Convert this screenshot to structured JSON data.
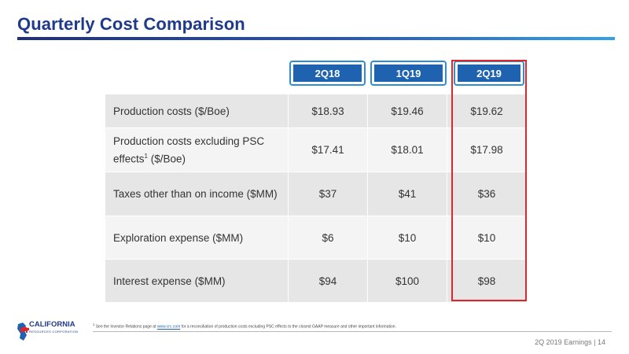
{
  "page": {
    "title": "Quarterly Cost Comparison",
    "page_info": "2Q 2019 Earnings | 14"
  },
  "table": {
    "columns": [
      "2Q18",
      "1Q19",
      "2Q19"
    ],
    "rows": [
      {
        "label": "Production costs ($/Boe)",
        "values": [
          "$18.93",
          "$19.46",
          "$19.62"
        ]
      },
      {
        "label_pre": "Production costs excluding PSC effects",
        "label_sup": "1",
        "label_post": " ($/Boe)",
        "values": [
          "$17.41",
          "$18.01",
          "$17.98"
        ]
      },
      {
        "label": "Taxes other than on income ($MM)",
        "values": [
          "$37",
          "$41",
          "$36"
        ]
      },
      {
        "label": "Exploration expense ($MM)",
        "values": [
          "$6",
          "$10",
          "$10"
        ]
      },
      {
        "label": "Interest expense ($MM)",
        "values": [
          "$94",
          "$100",
          "$98"
        ]
      }
    ],
    "highlighted_column": "2Q19"
  },
  "footnote": {
    "marker": "1",
    "pre": " See the Investor Relations page at ",
    "link": "www.crc.com",
    "post": " for a reconciliation of production costs excluding PSC effects to the closest GAAP measure and other important information."
  },
  "logo": {
    "name": "CALIFORNIA",
    "subtitle": "RESOURCES CORPORATION",
    "icon": "california-bear-logo-icon"
  },
  "colors": {
    "title": "#1f3a8a",
    "header_fill": "#1f63b0",
    "header_border": "#2c8fd6",
    "highlight": "#e0242b"
  }
}
